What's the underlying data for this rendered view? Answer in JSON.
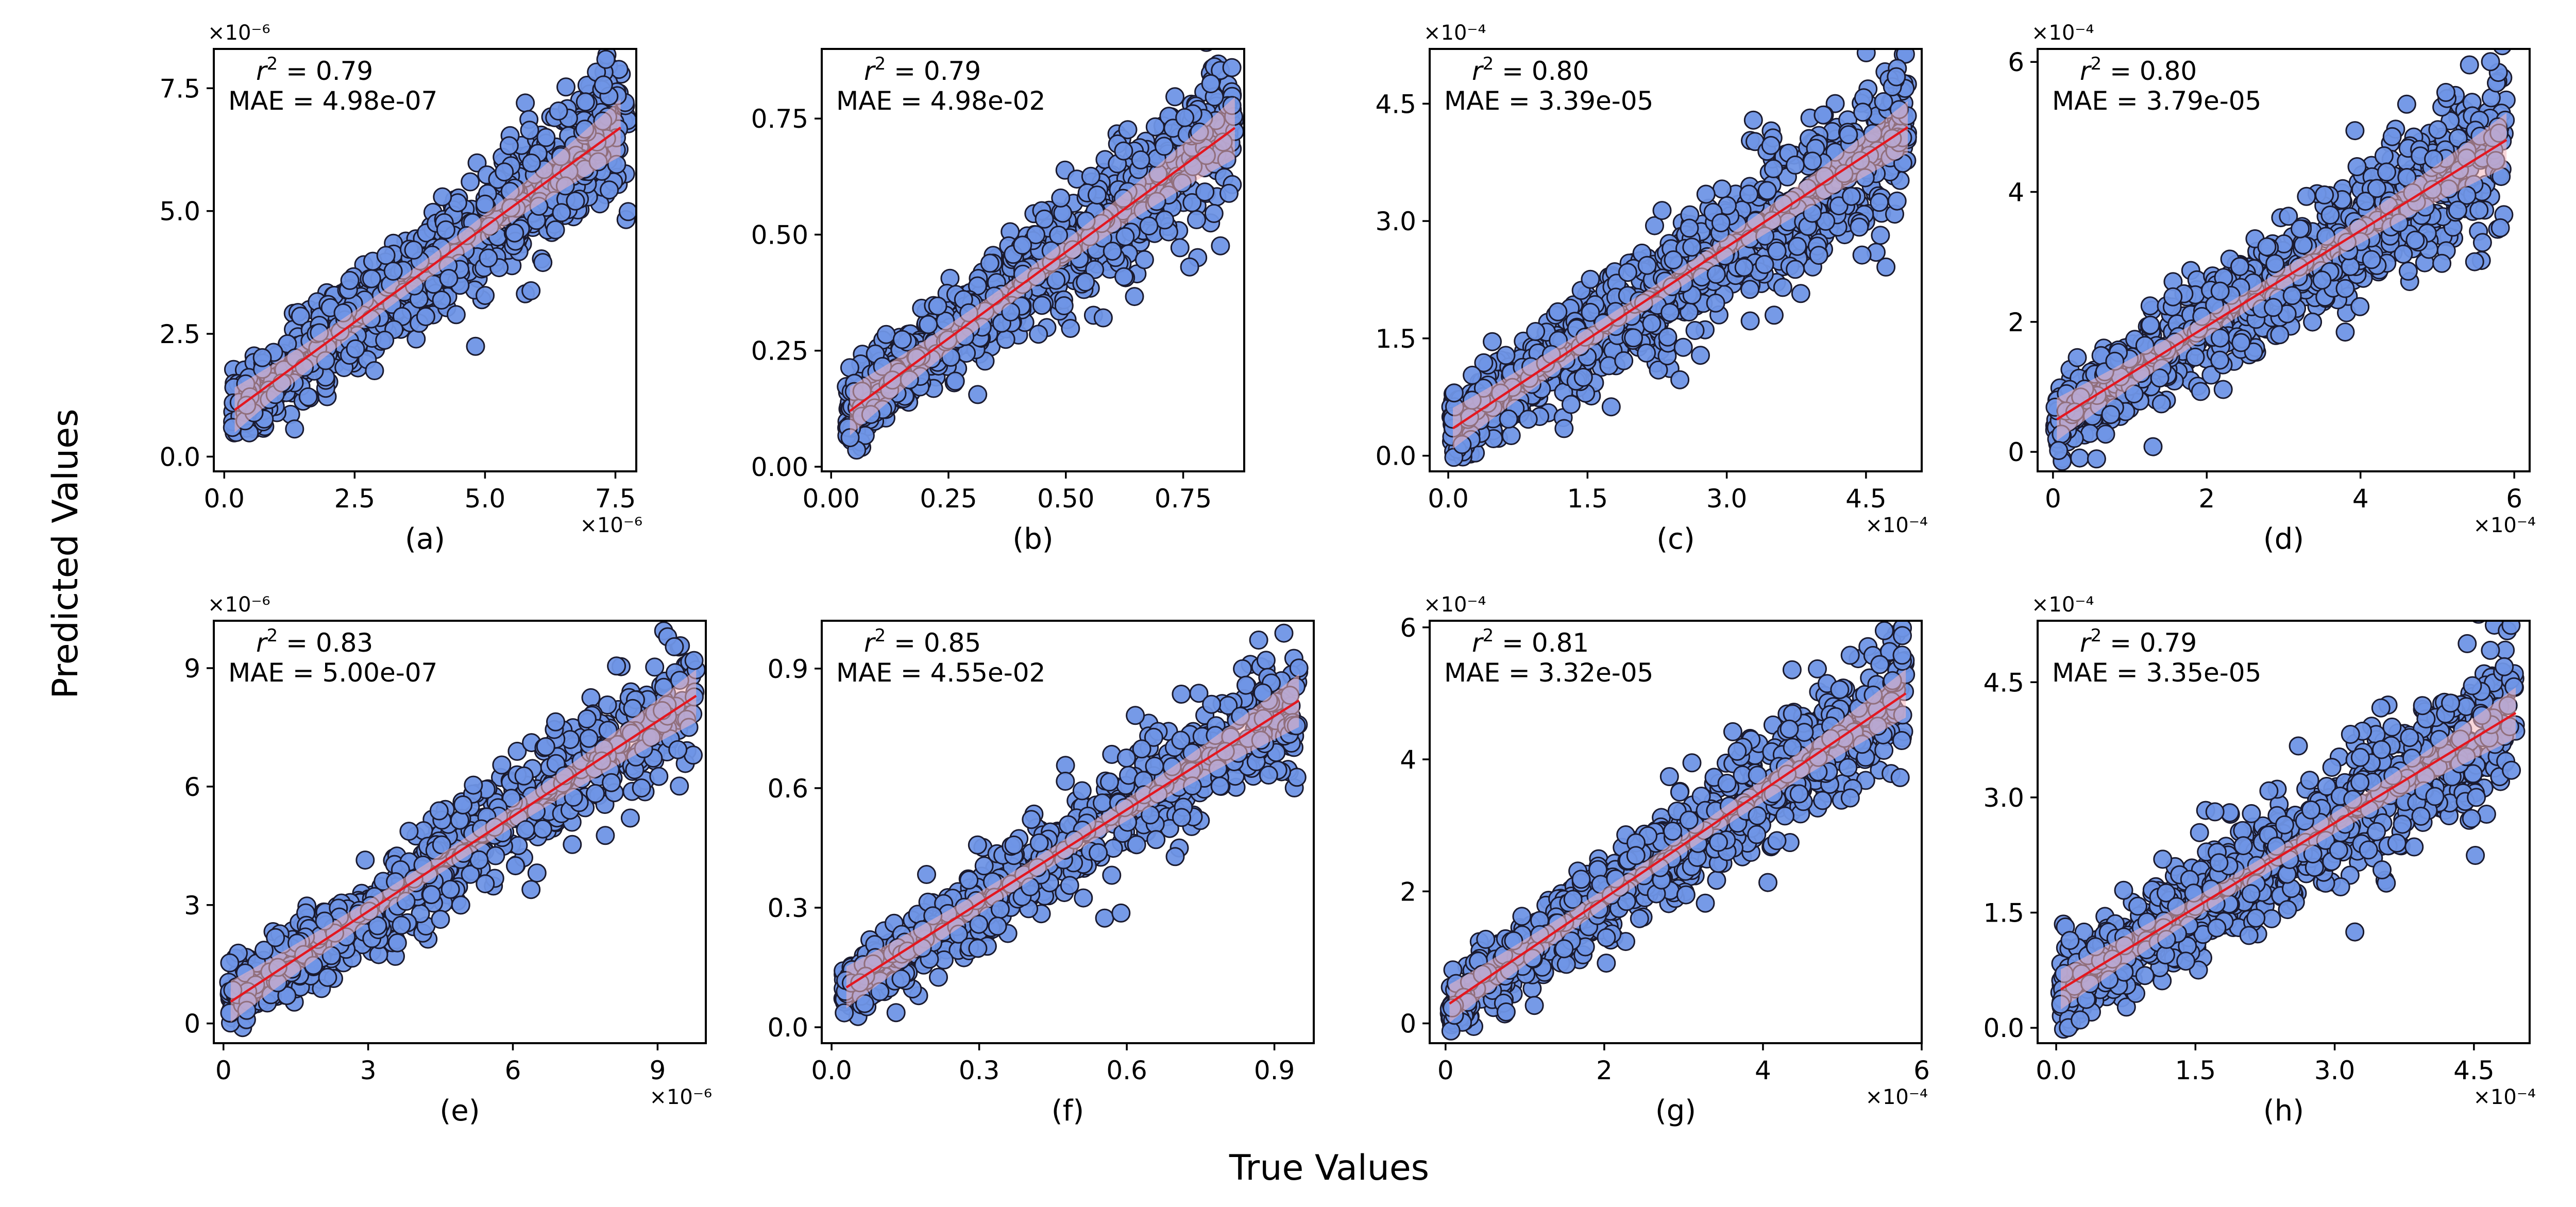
{
  "figure": {
    "xlabel": "True Values",
    "ylabel": "Predicted Values"
  },
  "colors": {
    "point_fill": "#6f95e6",
    "point_edge": "#1a1a2e",
    "fit_line": "#e3171f",
    "confidence_band": "#f4b6bd"
  },
  "chart_data": [
    {
      "type": "scatter",
      "panel": "(a)",
      "title": "",
      "xlabel": "",
      "ylabel": "",
      "annotation": {
        "r2_label": "r",
        "r2_value": "0.79",
        "mae_text": "MAE = 4.98e-07"
      },
      "x_multiplier": "×10⁻⁶",
      "y_multiplier": "×10⁻⁶",
      "xlim": [
        -0.2,
        7.9
      ],
      "ylim": [
        -0.3,
        8.3
      ],
      "xticks": [
        0.0,
        2.5,
        5.0,
        7.5
      ],
      "xtick_labels": [
        "0.0",
        "2.5",
        "5.0",
        "7.5"
      ],
      "yticks": [
        0.0,
        2.5,
        5.0,
        7.5
      ],
      "ytick_labels": [
        "0.0",
        "2.5",
        "5.0",
        "7.5"
      ],
      "fit": {
        "x0": 0.2,
        "x1": 7.6,
        "y0": 0.95,
        "y1": 6.7,
        "ci_halfwidth": 0.35
      },
      "point_count": 950,
      "x_range_data": [
        0.15,
        7.75
      ],
      "noise": 0.62,
      "seed": 11
    },
    {
      "type": "scatter",
      "panel": "(b)",
      "title": "",
      "xlabel": "",
      "ylabel": "",
      "annotation": {
        "r2_label": "r",
        "r2_value": "0.79",
        "mae_text": "MAE = 4.98e-02"
      },
      "x_multiplier": "",
      "y_multiplier": "",
      "xlim": [
        -0.02,
        0.88
      ],
      "ylim": [
        -0.01,
        0.9
      ],
      "xticks": [
        0.0,
        0.25,
        0.5,
        0.75
      ],
      "xtick_labels": [
        "0.00",
        "0.25",
        "0.50",
        "0.75"
      ],
      "yticks": [
        0.0,
        0.25,
        0.5,
        0.75
      ],
      "ytick_labels": [
        "0.00",
        "0.25",
        "0.50",
        "0.75"
      ],
      "fit": {
        "x0": 0.04,
        "x1": 0.86,
        "y0": 0.12,
        "y1": 0.73,
        "ci_halfwidth": 0.04
      },
      "point_count": 950,
      "x_range_data": [
        0.03,
        0.86
      ],
      "noise": 0.065,
      "seed": 23
    },
    {
      "type": "scatter",
      "panel": "(c)",
      "title": "",
      "xlabel": "",
      "ylabel": "",
      "annotation": {
        "r2_label": "r",
        "r2_value": "0.80",
        "mae_text": "MAE = 3.39e-05"
      },
      "x_multiplier": "×10⁻⁴",
      "y_multiplier": "×10⁻⁴",
      "xlim": [
        -0.2,
        5.1
      ],
      "ylim": [
        -0.2,
        5.2
      ],
      "xticks": [
        0.0,
        1.5,
        3.0,
        4.5
      ],
      "xtick_labels": [
        "0.0",
        "1.5",
        "3.0",
        "4.5"
      ],
      "yticks": [
        0.0,
        1.5,
        3.0,
        4.5
      ],
      "ytick_labels": [
        "0.0",
        "1.5",
        "3.0",
        "4.5"
      ],
      "fit": {
        "x0": 0.05,
        "x1": 4.95,
        "y0": 0.35,
        "y1": 4.2,
        "ci_halfwidth": 0.2
      },
      "point_count": 950,
      "x_range_data": [
        0.02,
        4.95
      ],
      "noise": 0.45,
      "seed": 37
    },
    {
      "type": "scatter",
      "panel": "(d)",
      "title": "",
      "xlabel": "",
      "ylabel": "",
      "annotation": {
        "r2_label": "r",
        "r2_value": "0.80",
        "mae_text": "MAE = 3.79e-05"
      },
      "x_multiplier": "×10⁻⁴",
      "y_multiplier": "×10⁻⁴",
      "xlim": [
        -0.2,
        6.2
      ],
      "ylim": [
        -0.3,
        6.2
      ],
      "xticks": [
        0,
        2,
        4,
        6
      ],
      "xtick_labels": [
        "0",
        "2",
        "4",
        "6"
      ],
      "yticks": [
        0,
        2,
        4,
        6
      ],
      "ytick_labels": [
        "0",
        "2",
        "4",
        "6"
      ],
      "fit": {
        "x0": 0.05,
        "x1": 5.9,
        "y0": 0.5,
        "y1": 4.8,
        "ci_halfwidth": 0.25
      },
      "point_count": 950,
      "x_range_data": [
        0.02,
        5.9
      ],
      "noise": 0.52,
      "seed": 41
    },
    {
      "type": "scatter",
      "panel": "(e)",
      "title": "",
      "xlabel": "",
      "ylabel": "",
      "annotation": {
        "r2_label": "r",
        "r2_value": "0.83",
        "mae_text": "MAE = 5.00e-07"
      },
      "x_multiplier": "×10⁻⁶",
      "y_multiplier": "×10⁻⁶",
      "xlim": [
        -0.2,
        10.0
      ],
      "ylim": [
        -0.5,
        10.2
      ],
      "xticks": [
        0,
        3,
        6,
        9
      ],
      "xtick_labels": [
        "0",
        "3",
        "6",
        "9"
      ],
      "yticks": [
        0,
        3,
        6,
        9
      ],
      "ytick_labels": [
        "0",
        "3",
        "6",
        "9"
      ],
      "fit": {
        "x0": 0.15,
        "x1": 9.8,
        "y0": 0.55,
        "y1": 8.3,
        "ci_halfwidth": 0.4
      },
      "point_count": 750,
      "x_range_data": [
        0.1,
        9.8
      ],
      "noise": 0.75,
      "seed": 53
    },
    {
      "type": "scatter",
      "panel": "(f)",
      "title": "",
      "xlabel": "",
      "ylabel": "",
      "annotation": {
        "r2_label": "r",
        "r2_value": "0.85",
        "mae_text": "MAE = 4.55e-02"
      },
      "x_multiplier": "",
      "y_multiplier": "",
      "xlim": [
        -0.02,
        0.98
      ],
      "ylim": [
        -0.04,
        1.02
      ],
      "xticks": [
        0.0,
        0.3,
        0.6,
        0.9
      ],
      "xtick_labels": [
        "0.0",
        "0.3",
        "0.6",
        "0.9"
      ],
      "yticks": [
        0.0,
        0.3,
        0.6,
        0.9
      ],
      "ytick_labels": [
        "0.0",
        "0.3",
        "0.6",
        "0.9"
      ],
      "fit": {
        "x0": 0.03,
        "x1": 0.95,
        "y0": 0.1,
        "y1": 0.82,
        "ci_halfwidth": 0.04
      },
      "point_count": 750,
      "x_range_data": [
        0.02,
        0.95
      ],
      "noise": 0.07,
      "seed": 67
    },
    {
      "type": "scatter",
      "panel": "(g)",
      "title": "",
      "xlabel": "",
      "ylabel": "",
      "annotation": {
        "r2_label": "r",
        "r2_value": "0.81",
        "mae_text": "MAE = 3.32e-05"
      },
      "x_multiplier": "×10⁻⁴",
      "y_multiplier": "×10⁻⁴",
      "xlim": [
        -0.2,
        6.0
      ],
      "ylim": [
        -0.3,
        6.1
      ],
      "xticks": [
        0,
        2,
        4,
        6
      ],
      "xtick_labels": [
        "0",
        "2",
        "4",
        "6"
      ],
      "yticks": [
        0,
        2,
        4,
        6
      ],
      "ytick_labels": [
        "0",
        "2",
        "4",
        "6"
      ],
      "fit": {
        "x0": 0.05,
        "x1": 5.8,
        "y0": 0.3,
        "y1": 5.0,
        "ci_halfwidth": 0.22
      },
      "point_count": 900,
      "x_range_data": [
        0.02,
        5.8
      ],
      "noise": 0.45,
      "seed": 79
    },
    {
      "type": "scatter",
      "panel": "(h)",
      "title": "",
      "xlabel": "",
      "ylabel": "",
      "annotation": {
        "r2_label": "r",
        "r2_value": "0.79",
        "mae_text": "MAE = 3.35e-05"
      },
      "x_multiplier": "×10⁻⁴",
      "y_multiplier": "×10⁻⁴",
      "xlim": [
        -0.2,
        5.1
      ],
      "ylim": [
        -0.2,
        5.3
      ],
      "xticks": [
        0.0,
        1.5,
        3.0,
        4.5
      ],
      "xtick_labels": [
        "0.0",
        "1.5",
        "3.0",
        "4.5"
      ],
      "yticks": [
        0.0,
        1.5,
        3.0,
        4.5
      ],
      "ytick_labels": [
        "0.0",
        "1.5",
        "3.0",
        "4.5"
      ],
      "fit": {
        "x0": 0.05,
        "x1": 4.95,
        "y0": 0.5,
        "y1": 4.1,
        "ci_halfwidth": 0.2
      },
      "point_count": 950,
      "x_range_data": [
        0.02,
        4.95
      ],
      "noise": 0.45,
      "seed": 97
    }
  ]
}
